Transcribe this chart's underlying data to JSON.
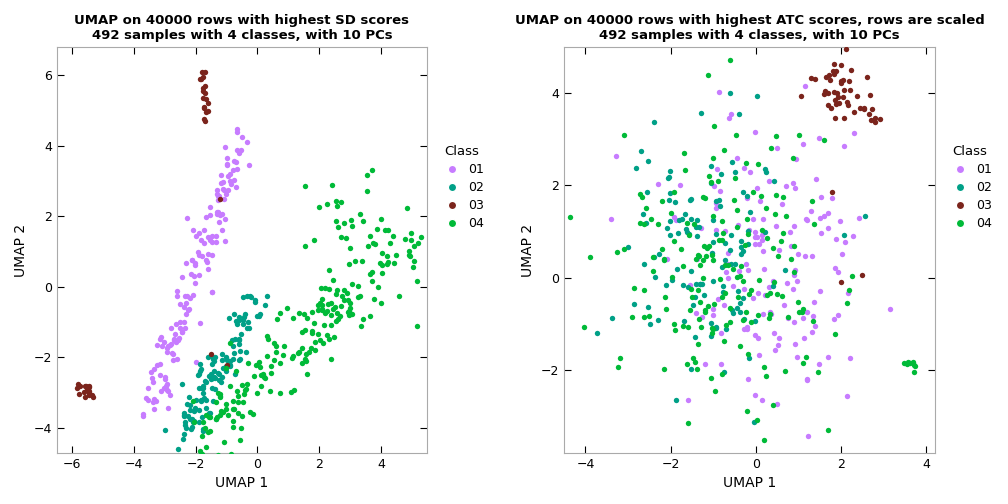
{
  "plot1": {
    "title": "UMAP on 40000 rows with highest SD scores\n492 samples with 4 classes, with 10 PCs",
    "xlabel": "UMAP 1",
    "ylabel": "UMAP 2",
    "xlim": [
      -6.5,
      5.5
    ],
    "ylim": [
      -4.7,
      6.8
    ],
    "xticks": [
      -6,
      -4,
      -2,
      0,
      2,
      4
    ],
    "yticks": [
      -4,
      -2,
      0,
      2,
      4,
      6
    ]
  },
  "plot2": {
    "title": "UMAP on 40000 rows with highest ATC scores, rows are scaled\n492 samples with 4 classes, with 10 PCs",
    "xlabel": "UMAP 1",
    "ylabel": "UMAP 2",
    "xlim": [
      -4.5,
      4.2
    ],
    "ylim": [
      -3.8,
      5.0
    ],
    "xticks": [
      -4,
      -2,
      0,
      2,
      4
    ],
    "yticks": [
      -2,
      0,
      2,
      4
    ]
  },
  "class_colors": {
    "01": "#C77CFF",
    "02": "#00A087",
    "03": "#7B241C",
    "04": "#00BA38"
  },
  "legend_title": "Class",
  "legend_labels": [
    "01",
    "02",
    "03",
    "04"
  ],
  "point_size": 15,
  "background_color": "#FFFFFF",
  "panel_bg": "#FFFFFF"
}
